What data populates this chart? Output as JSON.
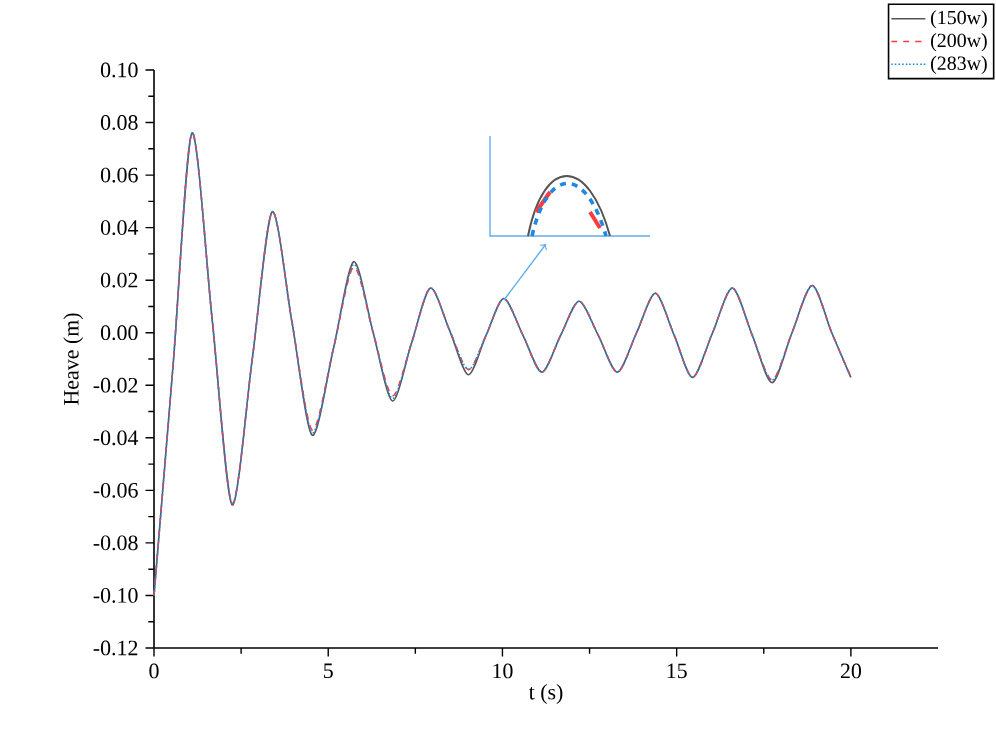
{
  "chart_data": {
    "type": "line",
    "xlabel": "t (s)",
    "ylabel": "Heave (m)",
    "xlim": [
      0,
      22.5
    ],
    "xticks": [
      0,
      5,
      10,
      15,
      20
    ],
    "ylim": [
      -0.12,
      0.1
    ],
    "yticks": [
      {
        "value": -0.12,
        "label": "-0.12"
      },
      {
        "value": -0.1,
        "label": "-0.10"
      },
      {
        "value": -0.08,
        "label": "-0.08"
      },
      {
        "value": -0.06,
        "label": "-0.06"
      },
      {
        "value": -0.04,
        "label": "-0.04"
      },
      {
        "value": -0.02,
        "label": "-0.02"
      },
      {
        "value": 0,
        "label": "0.00"
      },
      {
        "value": 0.02,
        "label": "0.02"
      },
      {
        "value": 0.04,
        "label": "0.04"
      },
      {
        "value": 0.06,
        "label": "0.06"
      },
      {
        "value": 0.08,
        "label": "0.08"
      },
      {
        "value": 0.1,
        "label": "0.10"
      }
    ],
    "x": [
      0,
      0.55,
      1.09,
      1.67,
      2.24,
      2.82,
      3.39,
      3.96,
      4.54,
      5.15,
      5.73,
      6.29,
      6.84,
      7.39,
      7.93,
      8.48,
      9.02,
      9.53,
      10.04,
      10.59,
      11.13,
      11.67,
      12.2,
      12.75,
      13.3,
      13.85,
      14.39,
      14.93,
      15.46,
      16.03,
      16.6,
      17.17,
      17.74,
      18.31,
      18.89,
      19.45,
      20
    ],
    "legend": "top right",
    "grid": false,
    "series": [
      {
        "name": "(150w)",
        "color": "#555555",
        "line_style": "solid",
        "values": [
          -0.1,
          -0.012,
          0.076,
          0.005,
          -0.0655,
          -0.01,
          0.046,
          0.004,
          -0.039,
          -0.006,
          0.027,
          0.0,
          -0.026,
          -0.004,
          0.017,
          0.001,
          -0.016,
          -0.001,
          0.013,
          -0.001,
          -0.015,
          -0.001,
          0.012,
          -0.001,
          -0.015,
          0.0,
          0.015,
          -0.001,
          -0.017,
          0.0,
          0.017,
          -0.001,
          -0.019,
          0.0,
          0.018,
          0.0,
          -0.017
        ]
      },
      {
        "name": "(200w)",
        "color": "#ff3b3b",
        "line_style": "dashed",
        "values": [
          -0.1,
          -0.012,
          0.076,
          0.005,
          -0.065,
          -0.01,
          0.046,
          0.004,
          -0.037,
          -0.006,
          0.025,
          0.0,
          -0.024,
          -0.004,
          0.017,
          0.001,
          -0.014,
          -0.001,
          0.013,
          -0.001,
          -0.015,
          -0.001,
          0.012,
          -0.001,
          -0.015,
          0.0,
          0.015,
          -0.001,
          -0.017,
          0.0,
          0.017,
          -0.001,
          -0.018,
          0.0,
          0.018,
          0.0,
          -0.017
        ]
      },
      {
        "name": "(283w)",
        "color": "#1e88e5",
        "line_style": "dotted",
        "values": [
          -0.1,
          -0.012,
          0.076,
          0.005,
          -0.065,
          -0.01,
          0.046,
          0.004,
          -0.038,
          -0.006,
          0.026,
          0.0,
          -0.025,
          -0.004,
          0.017,
          0.001,
          -0.014,
          -0.001,
          0.013,
          -0.001,
          -0.015,
          -0.001,
          0.012,
          -0.001,
          -0.015,
          0.0,
          0.015,
          -0.001,
          -0.017,
          0.0,
          0.017,
          -0.001,
          -0.018,
          0.0,
          0.018,
          0.0,
          -0.017
        ]
      }
    ]
  }
}
